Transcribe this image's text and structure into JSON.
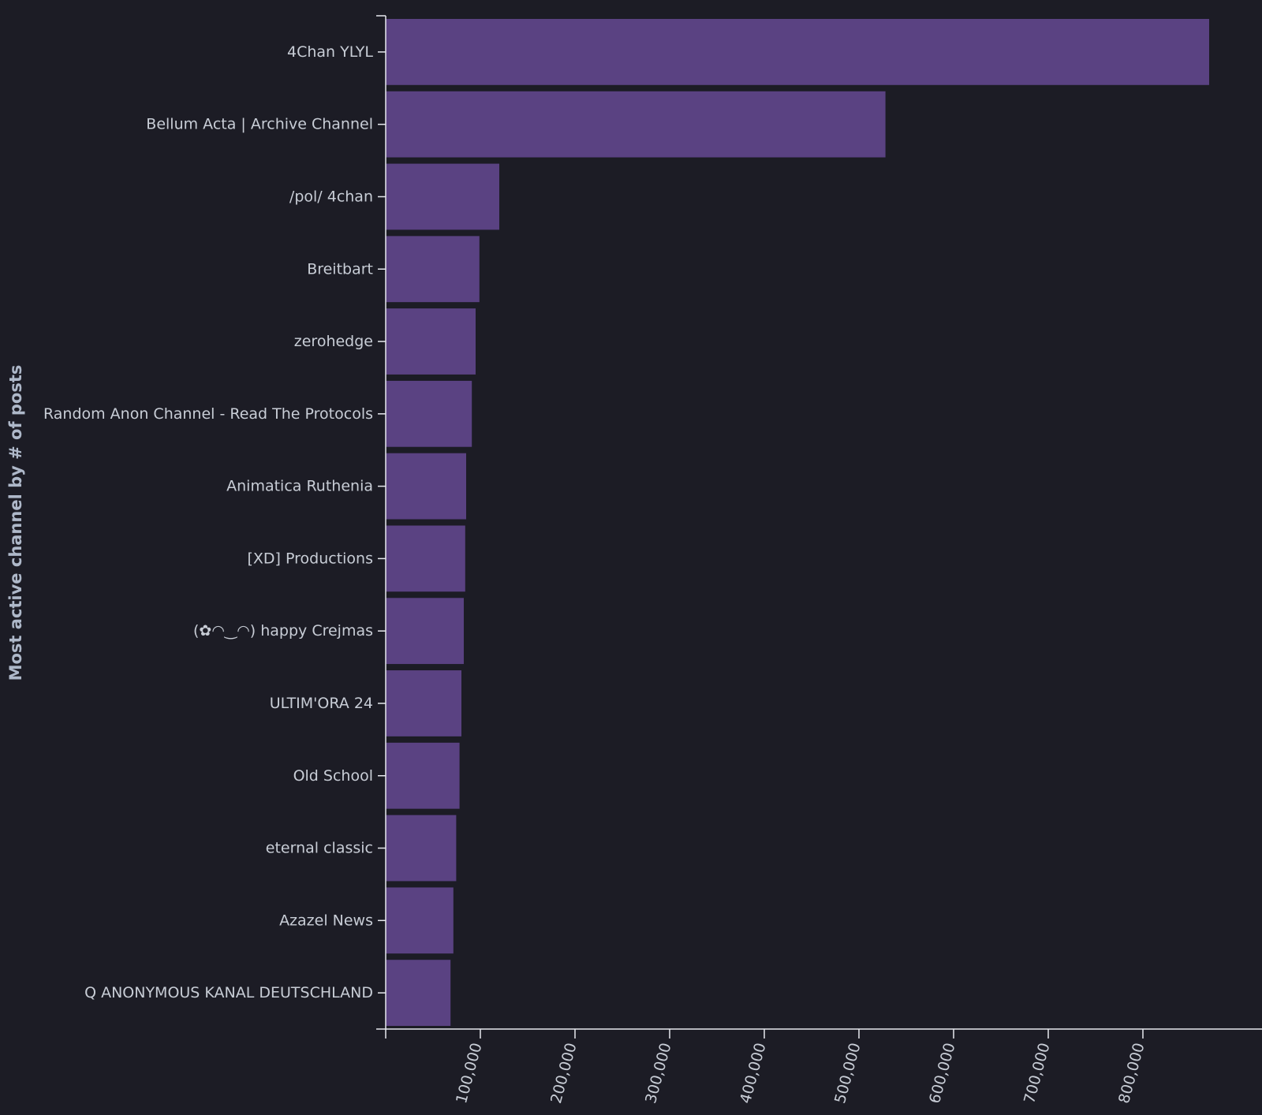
{
  "chart_data": {
    "type": "bar",
    "orientation": "horizontal",
    "title": "",
    "xlabel": "",
    "ylabel": "Most active channel by # of posts",
    "categories": [
      "4Chan YLYL",
      "Bellum Acta | Archive Channel",
      "/pol/ 4chan",
      "Breitbart",
      "zerohedge",
      "Random Anon Channel - Read The Protocols",
      "Animatica Ruthenia",
      "[XD] Productions",
      "(✿◠‿◠) happy Crejmas",
      "ULTIM'ORA 24",
      "Old School",
      "eternal classic",
      "Azazel News",
      "Q ANONYMOUS KANAL DEUTSCHLAND"
    ],
    "values": [
      870000,
      528000,
      120000,
      99000,
      95000,
      91000,
      85000,
      84000,
      82500,
      80000,
      78000,
      74500,
      71500,
      68500
    ],
    "xlim": [
      0,
      900000
    ],
    "x_ticks": [
      100000,
      200000,
      300000,
      400000,
      500000,
      600000,
      700000,
      800000
    ],
    "x_tick_labels": [
      "100,000",
      "200,000",
      "300,000",
      "400,000",
      "500,000",
      "600,000",
      "700,000",
      "800,000"
    ],
    "grid": false,
    "legend": "none",
    "colors": {
      "bar": "#5a4282",
      "background": "#1c1c25",
      "axis": "#e6e8ee",
      "text": "#c8cdd6",
      "title": "#aeb8c9"
    }
  }
}
